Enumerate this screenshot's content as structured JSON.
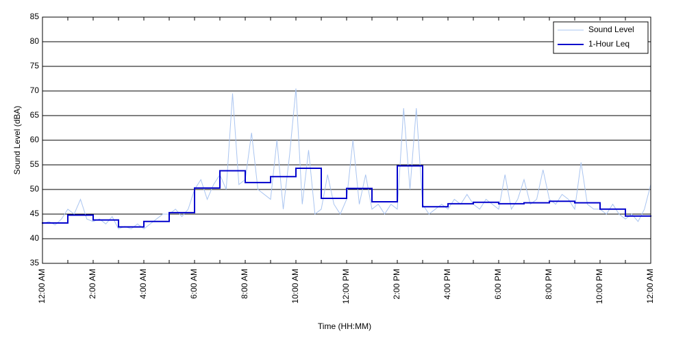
{
  "chart_data": {
    "type": "line",
    "xlabel": "Time (HH:MM)",
    "ylabel": "Sound Level (dBA)",
    "xlim": [
      0,
      24
    ],
    "ylim": [
      35,
      85
    ],
    "xticks": [
      {
        "value": 0,
        "label": "12:00 AM"
      },
      {
        "value": 2,
        "label": "2:00 AM"
      },
      {
        "value": 4,
        "label": "4:00 AM"
      },
      {
        "value": 6,
        "label": "6:00 AM"
      },
      {
        "value": 8,
        "label": "8:00 AM"
      },
      {
        "value": 10,
        "label": "10:00 AM"
      },
      {
        "value": 12,
        "label": "12:00 PM"
      },
      {
        "value": 14,
        "label": "2:00 PM"
      },
      {
        "value": 16,
        "label": "4:00 PM"
      },
      {
        "value": 18,
        "label": "6:00 PM"
      },
      {
        "value": 20,
        "label": "8:00 PM"
      },
      {
        "value": 22,
        "label": "10:00 PM"
      },
      {
        "value": 24,
        "label": "12:00 AM"
      }
    ],
    "xminor": [
      1,
      3,
      5,
      7,
      9,
      11,
      13,
      15,
      17,
      19,
      21,
      23
    ],
    "yticks": [
      35,
      40,
      45,
      50,
      55,
      60,
      65,
      70,
      75,
      80,
      85
    ],
    "grid": "y",
    "legend": "upper right",
    "series": [
      {
        "name": "Sound Level",
        "color": "#a9c4f0",
        "x": [
          0,
          0.25,
          0.5,
          0.75,
          1,
          1.25,
          1.5,
          1.75,
          2,
          2.25,
          2.5,
          2.75,
          3,
          3.25,
          3.5,
          3.75,
          4,
          4.25,
          4.5,
          4.75,
          5,
          5.25,
          5.5,
          5.75,
          6,
          6.25,
          6.5,
          6.75,
          7,
          7.25,
          7.5,
          7.75,
          8,
          8.25,
          8.5,
          8.75,
          9,
          9.25,
          9.5,
          9.75,
          10,
          10.25,
          10.5,
          10.75,
          11,
          11.25,
          11.5,
          11.75,
          12,
          12.25,
          12.5,
          12.75,
          13,
          13.25,
          13.5,
          13.75,
          14,
          14.25,
          14.5,
          14.75,
          15,
          15.25,
          15.5,
          15.75,
          16,
          16.25,
          16.5,
          16.75,
          17,
          17.25,
          17.5,
          17.75,
          18,
          18.25,
          18.5,
          18.75,
          19,
          19.25,
          19.5,
          19.75,
          20,
          20.25,
          20.5,
          20.75,
          21,
          21.25,
          21.5,
          21.75,
          22,
          22.25,
          22.5,
          22.75,
          23,
          23.25,
          23.5,
          23.75,
          24
        ],
        "values": [
          43,
          43.5,
          42.8,
          44,
          46,
          45,
          48,
          44,
          43.5,
          44,
          43,
          44.5,
          42,
          42.5,
          42,
          43,
          42,
          43,
          44,
          45,
          45,
          46,
          44.5,
          46,
          50,
          52,
          48,
          51,
          53,
          50,
          69.5,
          51,
          52,
          61.5,
          50,
          49,
          48,
          60,
          46,
          57,
          70.5,
          47,
          58,
          45,
          46,
          53,
          47,
          45,
          48,
          60,
          47,
          53,
          46,
          47,
          45,
          47,
          46,
          66.5,
          50,
          66.5,
          47,
          45,
          46,
          47,
          46,
          48,
          47,
          49,
          47,
          46,
          48,
          47,
          46,
          53,
          46,
          48,
          52,
          47,
          48,
          54,
          48,
          47,
          49,
          48,
          46,
          55.5,
          47,
          46,
          46,
          45,
          47,
          45,
          44,
          45,
          43.5,
          46,
          51
        ]
      },
      {
        "name": "1-Hour Leq",
        "color": "#0000cc",
        "step": "post",
        "x": [
          0,
          1,
          2,
          3,
          4,
          5,
          6,
          7,
          8,
          9,
          10,
          11,
          12,
          13,
          14,
          15,
          16,
          17,
          18,
          19,
          20,
          21,
          22,
          23
        ],
        "values": [
          43.2,
          44.8,
          43.8,
          42.4,
          43.5,
          45.3,
          50.3,
          53.8,
          51.4,
          52.6,
          54.3,
          48.2,
          50.2,
          47.5,
          54.8,
          46.5,
          47.1,
          47.4,
          47.1,
          47.3,
          47.6,
          47.3,
          46.0,
          44.6
        ]
      }
    ]
  }
}
